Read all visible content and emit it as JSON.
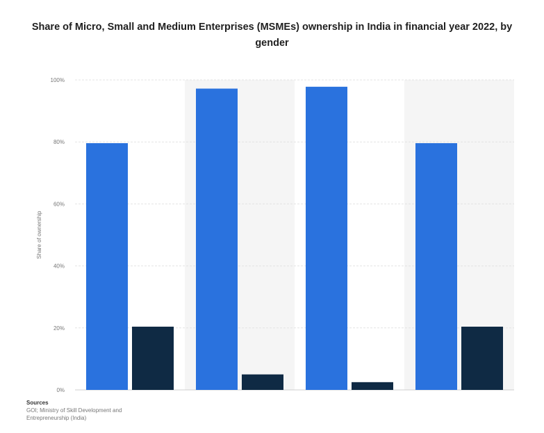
{
  "chart_data": {
    "type": "bar",
    "title": "Share of Micro, Small and Medium Enterprises (MSMEs) ownership in India in financial year 2022, by gender",
    "ylabel": "Share of ownership",
    "ylim": [
      0,
      100
    ],
    "yticks": [
      "0%",
      "20%",
      "40%",
      "60%",
      "80%",
      "100%"
    ],
    "categories": [
      "",
      "",
      "",
      ""
    ],
    "series": [
      {
        "values": [
          79.6,
          97.2,
          97.8,
          79.6
        ]
      },
      {
        "values": [
          20.4,
          5.0,
          2.5,
          20.4
        ]
      }
    ],
    "colors": [
      "#2a72de",
      "#0f2a44"
    ],
    "grid": true
  },
  "source": {
    "title": "Sources",
    "lines": [
      "GOI; Ministry of Skill Development and",
      "Entrepreneurship (India)"
    ]
  }
}
